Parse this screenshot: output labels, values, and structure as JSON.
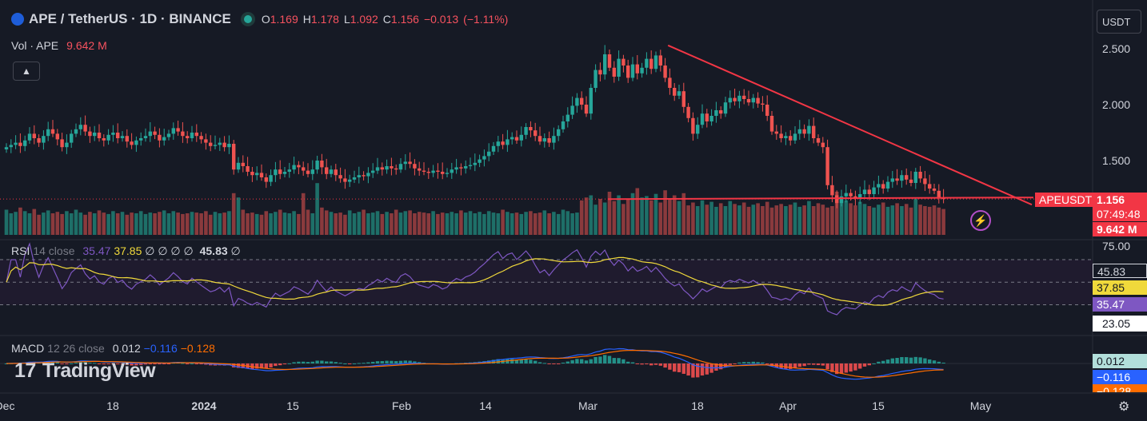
{
  "header": {
    "symbol": "APE / TetherUS · 1D · BINANCE",
    "ohlc": [
      {
        "k": "O",
        "v": "1.169"
      },
      {
        "k": "H",
        "v": "1.178"
      },
      {
        "k": "L",
        "v": "1.092"
      },
      {
        "k": "C",
        "v": "1.156"
      },
      {
        "k": "",
        "v": "−0.013"
      },
      {
        "k": "",
        "v": "(−1.11%)"
      }
    ],
    "volume_label": "Vol · APE",
    "volume_value": "9.642 M",
    "currency": "USDT"
  },
  "labels": {
    "ticker": "APEUSDT",
    "price": "1.156",
    "countdown": "07:49:48",
    "volume": "9.642 M"
  },
  "rsi_legend": {
    "name": "RSI",
    "params": "14 close",
    "v1": "35.47",
    "v2": "37.85",
    "v3": "∅ ∅ ∅ ∅",
    "v4": "45.83",
    "v5": "∅"
  },
  "macd_legend": {
    "name": "MACD",
    "params": "12 26 close",
    "v1": "0.012",
    "v2": "−0.116",
    "v3": "−0.128"
  },
  "brand": "TradingView",
  "colors": {
    "up": "#26a69a",
    "down": "#ef5350",
    "rsi": "#7e57c2",
    "rsi_ma": "#f0d93b",
    "macd": "#2962ff",
    "signal": "#ff6d00",
    "trend": "#f23645"
  },
  "chart_data": [
    {
      "type": "candlestick",
      "title": "APE / TetherUS · 1D · BINANCE",
      "x_ticks": [
        "Dec",
        "18",
        "2024",
        "15",
        "Feb",
        "14",
        "Mar",
        "18",
        "Apr",
        "15",
        "May"
      ],
      "y_ticks": [
        "1.500",
        "2.000",
        "2.500"
      ],
      "ylim": [
        0.85,
        2.85
      ],
      "closes": [
        1.62,
        1.64,
        1.66,
        1.63,
        1.68,
        1.74,
        1.7,
        1.66,
        1.72,
        1.78,
        1.74,
        1.69,
        1.62,
        1.66,
        1.74,
        1.78,
        1.82,
        1.76,
        1.72,
        1.75,
        1.7,
        1.68,
        1.73,
        1.75,
        1.7,
        1.72,
        1.67,
        1.64,
        1.68,
        1.7,
        1.72,
        1.76,
        1.73,
        1.68,
        1.71,
        1.74,
        1.79,
        1.76,
        1.72,
        1.7,
        1.75,
        1.72,
        1.69,
        1.66,
        1.63,
        1.64,
        1.66,
        1.62,
        1.65,
        1.42,
        1.48,
        1.45,
        1.4,
        1.37,
        1.39,
        1.35,
        1.31,
        1.37,
        1.42,
        1.38,
        1.4,
        1.42,
        1.46,
        1.44,
        1.41,
        1.38,
        1.42,
        1.5,
        1.44,
        1.38,
        1.42,
        1.37,
        1.34,
        1.31,
        1.33,
        1.35,
        1.37,
        1.36,
        1.39,
        1.41,
        1.44,
        1.42,
        1.45,
        1.43,
        1.42,
        1.47,
        1.49,
        1.47,
        1.43,
        1.41,
        1.4,
        1.39,
        1.41,
        1.4,
        1.38,
        1.39,
        1.42,
        1.44,
        1.43,
        1.45,
        1.46,
        1.48,
        1.51,
        1.54,
        1.58,
        1.63,
        1.67,
        1.64,
        1.69,
        1.71,
        1.68,
        1.73,
        1.8,
        1.77,
        1.72,
        1.67,
        1.7,
        1.66,
        1.72,
        1.78,
        1.85,
        1.91,
        1.99,
        2.06,
        2.0,
        1.92,
        2.15,
        2.31,
        2.27,
        2.45,
        2.33,
        2.25,
        2.41,
        2.35,
        2.24,
        2.36,
        2.28,
        2.33,
        2.41,
        2.32,
        2.44,
        2.35,
        2.24,
        2.15,
        2.08,
        2.12,
        1.98,
        1.88,
        1.74,
        1.82,
        1.92,
        1.85,
        1.9,
        1.95,
        1.92,
        2.02,
        2.06,
        2.03,
        2.08,
        2.05,
        2.02,
        2.06,
        2.01,
        2.0,
        1.9,
        1.76,
        1.74,
        1.7,
        1.72,
        1.68,
        1.74,
        1.78,
        1.74,
        1.81,
        1.7,
        1.66,
        1.62,
        1.28,
        1.19,
        1.12,
        1.18,
        1.21,
        1.18,
        1.16,
        1.2,
        1.24,
        1.2,
        1.26,
        1.29,
        1.25,
        1.31,
        1.34,
        1.32,
        1.37,
        1.33,
        1.3,
        1.4,
        1.34,
        1.29,
        1.25,
        1.23,
        1.17,
        1.156
      ],
      "volumes": [
        35,
        30,
        32,
        38,
        33,
        30,
        36,
        28,
        31,
        34,
        30,
        32,
        29,
        33,
        30,
        35,
        31,
        28,
        32,
        30,
        34,
        31,
        29,
        33,
        30,
        32,
        28,
        31,
        30,
        33,
        29,
        31,
        30,
        32,
        34,
        30,
        33,
        31,
        29,
        30,
        32,
        31,
        30,
        33,
        28,
        32,
        30,
        31,
        33,
        58,
        52,
        35,
        30,
        31,
        29,
        28,
        33,
        30,
        32,
        35,
        31,
        30,
        33,
        29,
        58,
        35,
        30,
        72,
        38,
        34,
        32,
        30,
        31,
        28,
        34,
        30,
        32,
        35,
        30,
        31,
        33,
        29,
        32,
        30,
        35,
        31,
        33,
        34,
        30,
        32,
        31,
        30,
        33,
        29,
        31,
        30,
        32,
        30,
        34,
        31,
        33,
        30,
        32,
        29,
        33,
        31,
        30,
        35,
        32,
        30,
        31,
        29,
        32,
        33,
        30,
        31,
        34,
        30,
        32,
        29,
        35,
        33,
        30,
        31,
        48,
        52,
        55,
        42,
        50,
        45,
        60,
        47,
        55,
        43,
        50,
        58,
        65,
        52,
        54,
        48,
        57,
        45,
        62,
        50,
        55,
        47,
        58,
        41,
        45,
        40,
        48,
        42,
        46,
        39,
        44,
        40,
        47,
        43,
        41,
        45,
        39,
        42,
        44,
        40,
        46,
        38,
        41,
        43,
        40,
        42,
        45,
        39,
        41,
        47,
        40,
        44,
        42,
        38,
        40,
        60,
        52,
        48,
        44,
        41,
        46,
        43,
        40,
        38,
        42,
        45,
        39,
        41,
        44,
        40,
        43,
        38,
        50,
        42,
        40,
        39,
        41,
        38,
        36
      ],
      "trendline": {
        "from": [
          144,
          2.53
        ],
        "to": [
          214,
          1.12
        ]
      },
      "support": {
        "from": [
          130,
          1.155
        ],
        "to": [
          214,
          1.17
        ]
      }
    },
    {
      "type": "line",
      "title": "RSI 14 close",
      "y_ticks": [
        "75.00",
        "23.05"
      ],
      "values_shown": [
        "45.83",
        "37.85",
        "35.47"
      ],
      "series": [
        {
          "name": "RSI",
          "last": 35.47
        },
        {
          "name": "RSI-based MA",
          "last": 37.85
        }
      ]
    },
    {
      "type": "line",
      "title": "MACD 12 26 close",
      "values_shown": [
        "0.012",
        "−0.116",
        "−0.128"
      ],
      "series": [
        {
          "name": "MACD",
          "last": -0.116
        },
        {
          "name": "Signal",
          "last": -0.128
        },
        {
          "name": "Histogram",
          "last": 0.012
        }
      ]
    }
  ]
}
